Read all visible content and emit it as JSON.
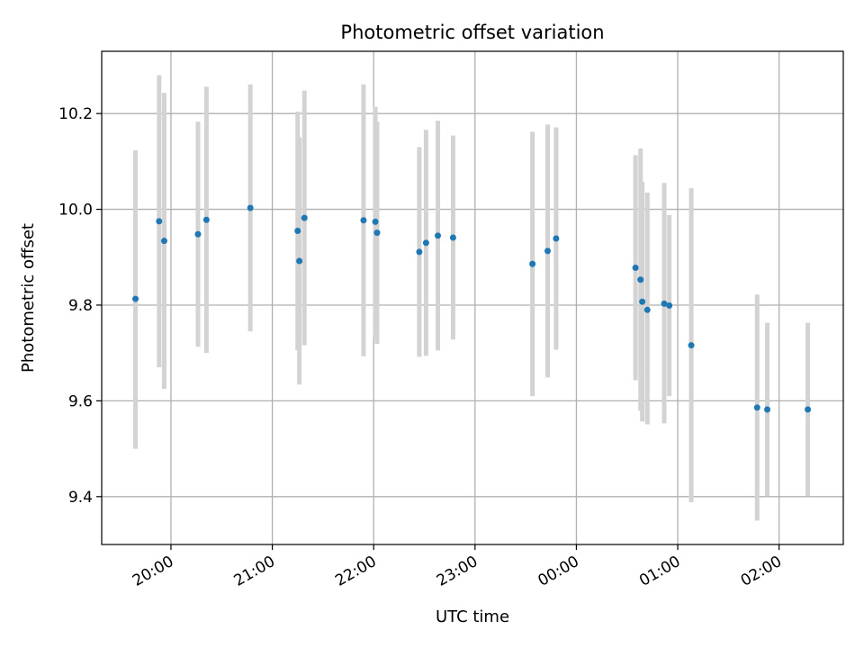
{
  "chart_data": {
    "type": "scatter",
    "title": "Photometric offset variation",
    "xlabel": "UTC time",
    "ylabel": "Photometric offset",
    "grid": true,
    "legend": "none",
    "x_unit": "UTC time (HH:MM:SS), chronological across midnight",
    "xlim": [
      "19:19:00",
      "02:38:00"
    ],
    "ylim": [
      9.3,
      10.33
    ],
    "x_ticks": [
      "20:00",
      "21:00",
      "22:00",
      "23:00",
      "00:00",
      "01:00",
      "02:00"
    ],
    "y_ticks": [
      "9.4",
      "9.6",
      "9.8",
      "10.0",
      "10.2"
    ],
    "colors": {
      "points": "#1f77b4",
      "error_bars": "#d3d3d3",
      "grid": "#b0b0b0"
    },
    "points": [
      {
        "x": "19:39:00",
        "y": 9.813,
        "yerr_low": 9.5,
        "yerr_high": 10.123
      },
      {
        "x": "19:53:00",
        "y": 9.975,
        "yerr_low": 9.67,
        "yerr_high": 10.28
      },
      {
        "x": "19:56:00",
        "y": 9.934,
        "yerr_low": 9.625,
        "yerr_high": 10.243
      },
      {
        "x": "20:16:00",
        "y": 9.948,
        "yerr_low": 9.713,
        "yerr_high": 10.183
      },
      {
        "x": "20:21:00",
        "y": 9.978,
        "yerr_low": 9.7,
        "yerr_high": 10.256
      },
      {
        "x": "20:47:00",
        "y": 10.003,
        "yerr_low": 9.745,
        "yerr_high": 10.261
      },
      {
        "x": "21:15:00",
        "y": 9.955,
        "yerr_low": 9.706,
        "yerr_high": 10.204
      },
      {
        "x": "21:16:00",
        "y": 9.892,
        "yerr_low": 9.634,
        "yerr_high": 10.15
      },
      {
        "x": "21:19:00",
        "y": 9.982,
        "yerr_low": 9.716,
        "yerr_high": 10.248
      },
      {
        "x": "21:54:00",
        "y": 9.977,
        "yerr_low": 9.693,
        "yerr_high": 10.261
      },
      {
        "x": "22:01:00",
        "y": 9.974,
        "yerr_low": 9.734,
        "yerr_high": 10.214
      },
      {
        "x": "22:02:00",
        "y": 9.951,
        "yerr_low": 9.719,
        "yerr_high": 10.183
      },
      {
        "x": "22:27:00",
        "y": 9.911,
        "yerr_low": 9.692,
        "yerr_high": 10.13
      },
      {
        "x": "22:31:00",
        "y": 9.93,
        "yerr_low": 9.694,
        "yerr_high": 10.166
      },
      {
        "x": "22:38:00",
        "y": 9.945,
        "yerr_low": 9.705,
        "yerr_high": 10.185
      },
      {
        "x": "22:47:00",
        "y": 9.941,
        "yerr_low": 9.728,
        "yerr_high": 10.154
      },
      {
        "x": "23:34:00",
        "y": 9.886,
        "yerr_low": 9.61,
        "yerr_high": 10.162
      },
      {
        "x": "23:43:00",
        "y": 9.913,
        "yerr_low": 9.649,
        "yerr_high": 10.177
      },
      {
        "x": "23:48:00",
        "y": 9.939,
        "yerr_low": 9.707,
        "yerr_high": 10.171
      },
      {
        "x": "00:35:00",
        "y": 9.878,
        "yerr_low": 9.643,
        "yerr_high": 10.113
      },
      {
        "x": "00:38:00",
        "y": 9.853,
        "yerr_low": 9.579,
        "yerr_high": 10.127
      },
      {
        "x": "00:39:00",
        "y": 9.807,
        "yerr_low": 9.557,
        "yerr_high": 10.057
      },
      {
        "x": "00:42:00",
        "y": 9.79,
        "yerr_low": 9.551,
        "yerr_high": 10.035
      },
      {
        "x": "00:52:00",
        "y": 9.803,
        "yerr_low": 9.553,
        "yerr_high": 10.055
      },
      {
        "x": "00:55:00",
        "y": 9.799,
        "yerr_low": 9.61,
        "yerr_high": 9.988
      },
      {
        "x": "01:08:00",
        "y": 9.716,
        "yerr_low": 9.388,
        "yerr_high": 10.044
      },
      {
        "x": "01:47:00",
        "y": 9.586,
        "yerr_low": 9.35,
        "yerr_high": 9.822
      },
      {
        "x": "01:53:00",
        "y": 9.582,
        "yerr_low": 9.401,
        "yerr_high": 9.763
      },
      {
        "x": "02:17:00",
        "y": 9.582,
        "yerr_low": 9.401,
        "yerr_high": 9.763
      }
    ]
  }
}
